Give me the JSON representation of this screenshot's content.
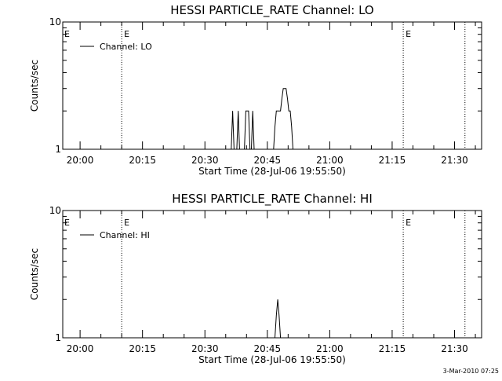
{
  "footer": {
    "timestamp": "3-Mar-2010 07:25"
  },
  "chart_data": [
    {
      "type": "line",
      "title": "HESSI PARTICLE_RATE Channel: LO",
      "xlabel": "Start Time (28-Jul-06 19:55:50)",
      "ylabel": "Counts/sec",
      "yscale": "log",
      "ylim": [
        1,
        10
      ],
      "xlim": [
        "19:55:50",
        "21:36:30"
      ],
      "x_ticks": [
        "20:00",
        "20:15",
        "20:30",
        "20:45",
        "21:00",
        "21:15",
        "21:30"
      ],
      "y_ticks": [
        "1",
        "10"
      ],
      "legend": {
        "label": "Channel: LO",
        "placement": "top-left"
      },
      "event_markers": [
        {
          "time": "20:10:00",
          "label": "E"
        },
        {
          "time": "21:17:40",
          "label": "E"
        },
        {
          "time": "21:32:30",
          "label": ""
        }
      ],
      "event_edge_label": "E",
      "series": [
        {
          "name": "Channel: LO",
          "points": [
            [
              "20:36:20",
              1
            ],
            [
              "20:36:40",
              2
            ],
            [
              "20:37:00",
              1
            ],
            [
              "20:37:40",
              1
            ],
            [
              "20:38:00",
              2
            ],
            [
              "20:38:20",
              1
            ],
            [
              "20:39:30",
              1
            ],
            [
              "20:39:50",
              2
            ],
            [
              "20:40:30",
              2
            ],
            [
              "20:40:50",
              1
            ],
            [
              "20:41:10",
              1
            ],
            [
              "20:41:30",
              2
            ],
            [
              "20:41:50",
              1
            ],
            [
              "20:46:30",
              1
            ],
            [
              "20:46:50",
              1.5
            ],
            [
              "20:47:10",
              2
            ],
            [
              "20:48:10",
              2
            ],
            [
              "20:48:30",
              2.5
            ],
            [
              "20:48:50",
              3
            ],
            [
              "20:49:30",
              3
            ],
            [
              "20:49:50",
              2.5
            ],
            [
              "20:50:10",
              2
            ],
            [
              "20:50:30",
              2
            ],
            [
              "20:50:50",
              1.5
            ],
            [
              "20:51:10",
              1
            ]
          ]
        }
      ]
    },
    {
      "type": "line",
      "title": "HESSI PARTICLE_RATE Channel: HI",
      "xlabel": "Start Time (28-Jul-06 19:55:50)",
      "ylabel": "Counts/sec",
      "yscale": "log",
      "ylim": [
        1,
        10
      ],
      "xlim": [
        "19:55:50",
        "21:36:30"
      ],
      "x_ticks": [
        "20:00",
        "20:15",
        "20:30",
        "20:45",
        "21:00",
        "21:15",
        "21:30"
      ],
      "y_ticks": [
        "1",
        "10"
      ],
      "legend": {
        "label": "Channel: HI",
        "placement": "top-left"
      },
      "event_markers": [
        {
          "time": "20:10:00",
          "label": "E"
        },
        {
          "time": "21:17:40",
          "label": "E"
        },
        {
          "time": "21:32:30",
          "label": ""
        }
      ],
      "event_edge_label": "E",
      "series": [
        {
          "name": "Channel: HI",
          "points": [
            [
              "20:46:50",
              1
            ],
            [
              "20:47:10",
              1.5
            ],
            [
              "20:47:30",
              2
            ],
            [
              "20:47:50",
              1.5
            ],
            [
              "20:48:10",
              1
            ]
          ]
        }
      ]
    }
  ]
}
